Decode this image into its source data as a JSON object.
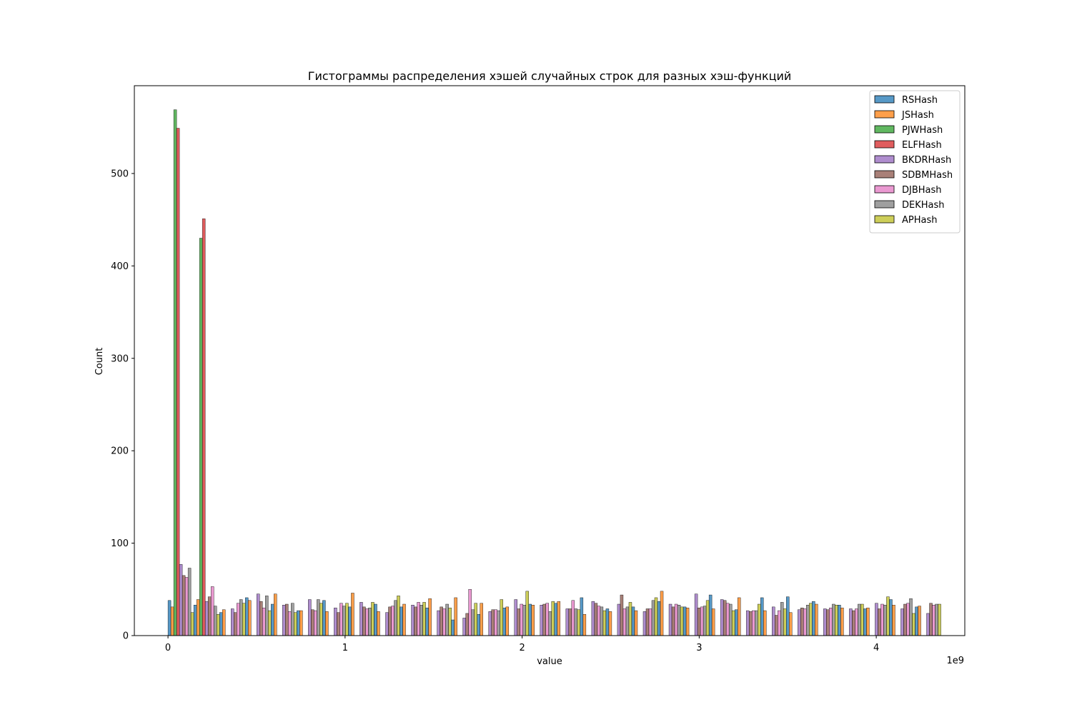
{
  "chart_data": {
    "type": "bar",
    "title": "Гистограммы распределения хэшей случайных строк для разных хэш-функций",
    "xlabel": "value",
    "ylabel": "Count",
    "x_offset_text": "1e9",
    "xlim": [
      -0.19,
      4.5
    ],
    "ylim": [
      0,
      595
    ],
    "x_ticks": [
      0,
      1,
      2,
      3,
      4
    ],
    "y_ticks": [
      0,
      100,
      200,
      300,
      400,
      500
    ],
    "x_tick_labels": [
      "0",
      "1",
      "2",
      "3",
      "4"
    ],
    "y_tick_labels": [
      "0",
      "100",
      "200",
      "300",
      "400",
      "500"
    ],
    "legend_position": "top-right",
    "grid": false,
    "bin_start": 0.0,
    "bin_width": 0.1455,
    "series": [
      {
        "name": "RSHash",
        "color": "#1f77b4",
        "values": [
          38,
          33,
          25,
          41,
          34,
          27,
          38,
          31,
          34,
          31,
          30,
          17,
          23,
          30,
          34,
          35,
          41,
          29,
          31,
          37,
          31,
          44,
          28,
          41,
          42,
          37,
          33,
          29,
          39,
          31
        ]
      },
      {
        "name": "JSHash",
        "color": "#ff7f0e",
        "values": [
          31,
          39,
          28,
          38,
          45,
          27,
          26,
          46,
          26,
          34,
          40,
          41,
          35,
          31,
          33,
          37,
          23,
          26,
          27,
          48,
          30,
          29,
          41,
          27,
          25,
          34,
          30,
          30,
          33,
          32
        ]
      },
      {
        "name": "PJWHash",
        "color": "#2ca02c",
        "values": [
          569,
          430,
          0,
          0,
          0,
          0,
          0,
          0,
          0,
          0,
          0,
          0,
          0,
          0,
          0,
          0,
          0,
          0,
          0,
          0,
          0,
          0,
          0,
          0,
          0,
          0,
          0,
          0,
          0,
          0
        ]
      },
      {
        "name": "ELFHash",
        "color": "#d62728",
        "values": [
          549,
          451,
          0,
          0,
          0,
          0,
          0,
          0,
          0,
          0,
          0,
          0,
          0,
          0,
          0,
          0,
          0,
          0,
          0,
          0,
          0,
          0,
          0,
          0,
          0,
          0,
          0,
          0,
          0,
          0
        ]
      },
      {
        "name": "BKDRHash",
        "color": "#9467bd",
        "values": [
          77,
          37,
          29,
          45,
          33,
          39,
          30,
          36,
          25,
          33,
          27,
          19,
          26,
          39,
          33,
          29,
          37,
          34,
          26,
          34,
          45,
          39,
          27,
          31,
          28,
          29,
          29,
          35,
          29,
          24
        ]
      },
      {
        "name": "SDBMHash",
        "color": "#8c564b",
        "values": [
          65,
          42,
          25,
          37,
          34,
          28,
          25,
          31,
          31,
          31,
          31,
          24,
          28,
          29,
          34,
          29,
          35,
          44,
          29,
          31,
          30,
          38,
          26,
          22,
          30,
          28,
          27,
          29,
          34,
          35
        ]
      },
      {
        "name": "DJBHash",
        "color": "#e377c2",
        "values": [
          63,
          53,
          35,
          30,
          26,
          27,
          35,
          29,
          32,
          36,
          29,
          50,
          28,
          34,
          35,
          38,
          32,
          29,
          29,
          34,
          31,
          35,
          27,
          27,
          29,
          30,
          29,
          34,
          35,
          33
        ]
      },
      {
        "name": "DEKHash",
        "color": "#7f7f7f",
        "values": [
          73,
          32,
          39,
          43,
          35,
          39,
          32,
          30,
          38,
          33,
          34,
          28,
          27,
          33,
          26,
          29,
          31,
          31,
          38,
          33,
          32,
          34,
          27,
          36,
          33,
          34,
          34,
          33,
          40,
          34
        ]
      },
      {
        "name": "APHash",
        "color": "#bcbd22",
        "values": [
          25,
          23,
          35,
          27,
          25,
          35,
          35,
          36,
          43,
          36,
          30,
          35,
          39,
          48,
          37,
          28,
          27,
          36,
          41,
          31,
          38,
          27,
          34,
          29,
          35,
          33,
          34,
          42,
          24,
          34
        ]
      }
    ]
  }
}
